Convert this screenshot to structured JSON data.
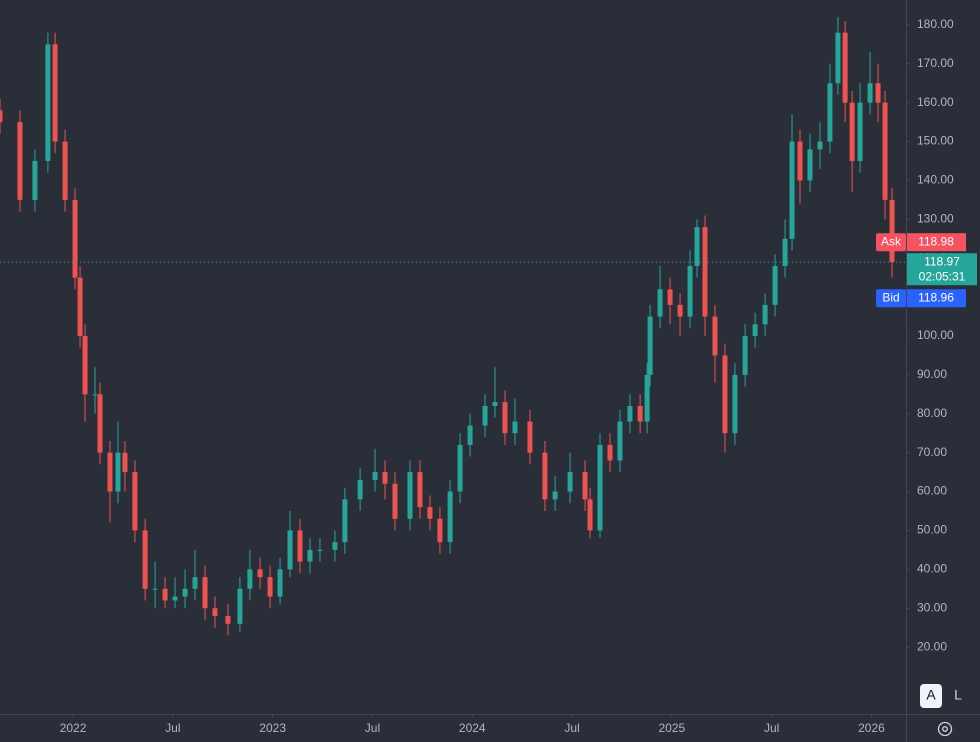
{
  "chart_data": {
    "type": "candlestick",
    "x": [
      2021.634,
      2021.734,
      2021.809,
      2021.874,
      2021.91,
      2021.96,
      2022.01,
      2022.035,
      2022.06,
      2022.11,
      2022.135,
      2022.185,
      2022.225,
      2022.26,
      2022.31,
      2022.361,
      2022.411,
      2022.461,
      2022.511,
      2022.561,
      2022.611,
      2022.661,
      2022.711,
      2022.776,
      2022.836,
      2022.886,
      2022.937,
      2022.987,
      2023.037,
      2023.087,
      2023.137,
      2023.187,
      2023.237,
      2023.312,
      2023.362,
      2023.438,
      2023.513,
      2023.563,
      2023.613,
      2023.688,
      2023.738,
      2023.788,
      2023.838,
      2023.889,
      2023.939,
      2023.989,
      2024.064,
      2024.114,
      2024.164,
      2024.214,
      2024.289,
      2024.364,
      2024.415,
      2024.49,
      2024.565,
      2024.59,
      2024.64,
      2024.69,
      2024.74,
      2024.79,
      2024.841,
      2024.876,
      2024.891,
      2024.941,
      2024.991,
      2025.041,
      2025.091,
      2025.126,
      2025.166,
      2025.216,
      2025.266,
      2025.316,
      2025.367,
      2025.417,
      2025.467,
      2025.517,
      2025.567,
      2025.602,
      2025.642,
      2025.692,
      2025.742,
      2025.792,
      2025.832,
      2025.868,
      2025.903,
      2025.943,
      2025.993,
      2026.033,
      2026.068,
      2026.103
    ],
    "open": [
      158,
      155,
      135,
      145,
      175,
      150,
      135,
      115,
      100,
      85,
      85,
      70,
      60,
      70,
      65,
      50,
      35,
      35,
      32,
      33,
      35,
      38,
      30,
      28,
      26,
      35,
      40,
      38,
      33,
      40,
      50,
      42,
      45,
      45,
      47,
      58,
      63,
      65,
      62,
      53,
      65,
      56,
      53,
      47,
      60,
      72,
      77,
      82,
      83,
      75,
      78,
      70,
      58,
      60,
      65,
      58,
      50,
      72,
      68,
      78,
      82,
      78,
      90,
      105,
      112,
      108,
      105,
      118,
      128,
      105,
      95,
      75,
      90,
      100,
      103,
      108,
      118,
      125,
      150,
      140,
      148,
      150,
      165,
      178,
      160,
      145,
      160,
      165,
      160,
      135
    ],
    "high": [
      161,
      158,
      148,
      178,
      178,
      153,
      138,
      118,
      103,
      92,
      88,
      73,
      78,
      73,
      68,
      53,
      42,
      38,
      38,
      40,
      45,
      41,
      33,
      31,
      38,
      45,
      43,
      41,
      43,
      55,
      53,
      48,
      48,
      50,
      61,
      66,
      71,
      68,
      65,
      68,
      68,
      59,
      56,
      63,
      75,
      80,
      85,
      92,
      86,
      84,
      81,
      73,
      64,
      70,
      68,
      61,
      75,
      75,
      81,
      85,
      85,
      93,
      108,
      118,
      115,
      111,
      122,
      130,
      131,
      108,
      98,
      93,
      103,
      106,
      111,
      121,
      130,
      157,
      153,
      152,
      155,
      170,
      182,
      181,
      163,
      165,
      173,
      170,
      163,
      138
    ],
    "low": [
      152,
      132,
      132,
      142,
      147,
      132,
      112,
      97,
      78,
      80,
      67,
      52,
      57,
      60,
      47,
      32,
      30,
      30,
      30,
      30,
      32,
      27,
      25,
      23,
      24,
      32,
      35,
      30,
      31,
      38,
      39,
      39,
      42,
      42,
      44,
      55,
      60,
      58,
      50,
      50,
      53,
      50,
      44,
      44,
      57,
      69,
      74,
      79,
      72,
      72,
      67,
      55,
      55,
      57,
      55,
      48,
      48,
      65,
      65,
      75,
      75,
      75,
      87,
      102,
      103,
      100,
      102,
      115,
      100,
      88,
      70,
      72,
      87,
      97,
      100,
      105,
      115,
      122,
      134,
      137,
      143,
      147,
      162,
      155,
      137,
      142,
      157,
      155,
      130,
      115
    ],
    "close": [
      155,
      135,
      145,
      175,
      150,
      135,
      115,
      100,
      85,
      85,
      70,
      60,
      70,
      65,
      50,
      35,
      35,
      32,
      33,
      35,
      38,
      30,
      28,
      26,
      35,
      40,
      38,
      33,
      40,
      50,
      42,
      45,
      45,
      47,
      58,
      63,
      65,
      62,
      53,
      65,
      56,
      53,
      47,
      60,
      72,
      77,
      82,
      83,
      75,
      78,
      70,
      58,
      60,
      65,
      58,
      50,
      72,
      68,
      78,
      82,
      78,
      90,
      105,
      112,
      108,
      105,
      118,
      128,
      105,
      95,
      75,
      90,
      100,
      103,
      108,
      118,
      125,
      150,
      140,
      148,
      150,
      165,
      178,
      160,
      145,
      160,
      165,
      160,
      135,
      119
    ],
    "up_color": "#26a69a",
    "down_color": "#ef5350",
    "xlim": [
      2021.634,
      2026.173
    ],
    "ylim": [
      2.8,
      186.4
    ],
    "xticks": [
      {
        "value": 2022,
        "label": "2022"
      },
      {
        "value": 2022.5,
        "label": "Jul"
      },
      {
        "value": 2023,
        "label": "2023"
      },
      {
        "value": 2023.5,
        "label": "Jul"
      },
      {
        "value": 2024,
        "label": "2024"
      },
      {
        "value": 2024.5,
        "label": "Jul"
      },
      {
        "value": 2025,
        "label": "2025"
      },
      {
        "value": 2025.5,
        "label": "Jul"
      },
      {
        "value": 2026,
        "label": "2026"
      }
    ],
    "yticks": [
      {
        "value": 20,
        "label": "20.00"
      },
      {
        "value": 30,
        "label": "30.00"
      },
      {
        "value": 40,
        "label": "40.00"
      },
      {
        "value": 50,
        "label": "50.00"
      },
      {
        "value": 60,
        "label": "60.00"
      },
      {
        "value": 70,
        "label": "70.00"
      },
      {
        "value": 80,
        "label": "80.00"
      },
      {
        "value": 90,
        "label": "90.00"
      },
      {
        "value": 100,
        "label": "100.00"
      },
      {
        "value": 110,
        "label": "110.00"
      },
      {
        "value": 120,
        "label": "120.00"
      },
      {
        "value": 130,
        "label": "130.00"
      },
      {
        "value": 140,
        "label": "140.00"
      },
      {
        "value": 150,
        "label": "150.00"
      },
      {
        "value": 160,
        "label": "160.00"
      },
      {
        "value": 170,
        "label": "170.00"
      },
      {
        "value": 180,
        "label": "180.00"
      }
    ],
    "ask_label": "Ask",
    "ask": 118.98,
    "last": 118.97,
    "countdown": "02:05:31",
    "bid_label": "Bid",
    "bid": 118.96,
    "buttons": [
      "A",
      "L"
    ]
  }
}
